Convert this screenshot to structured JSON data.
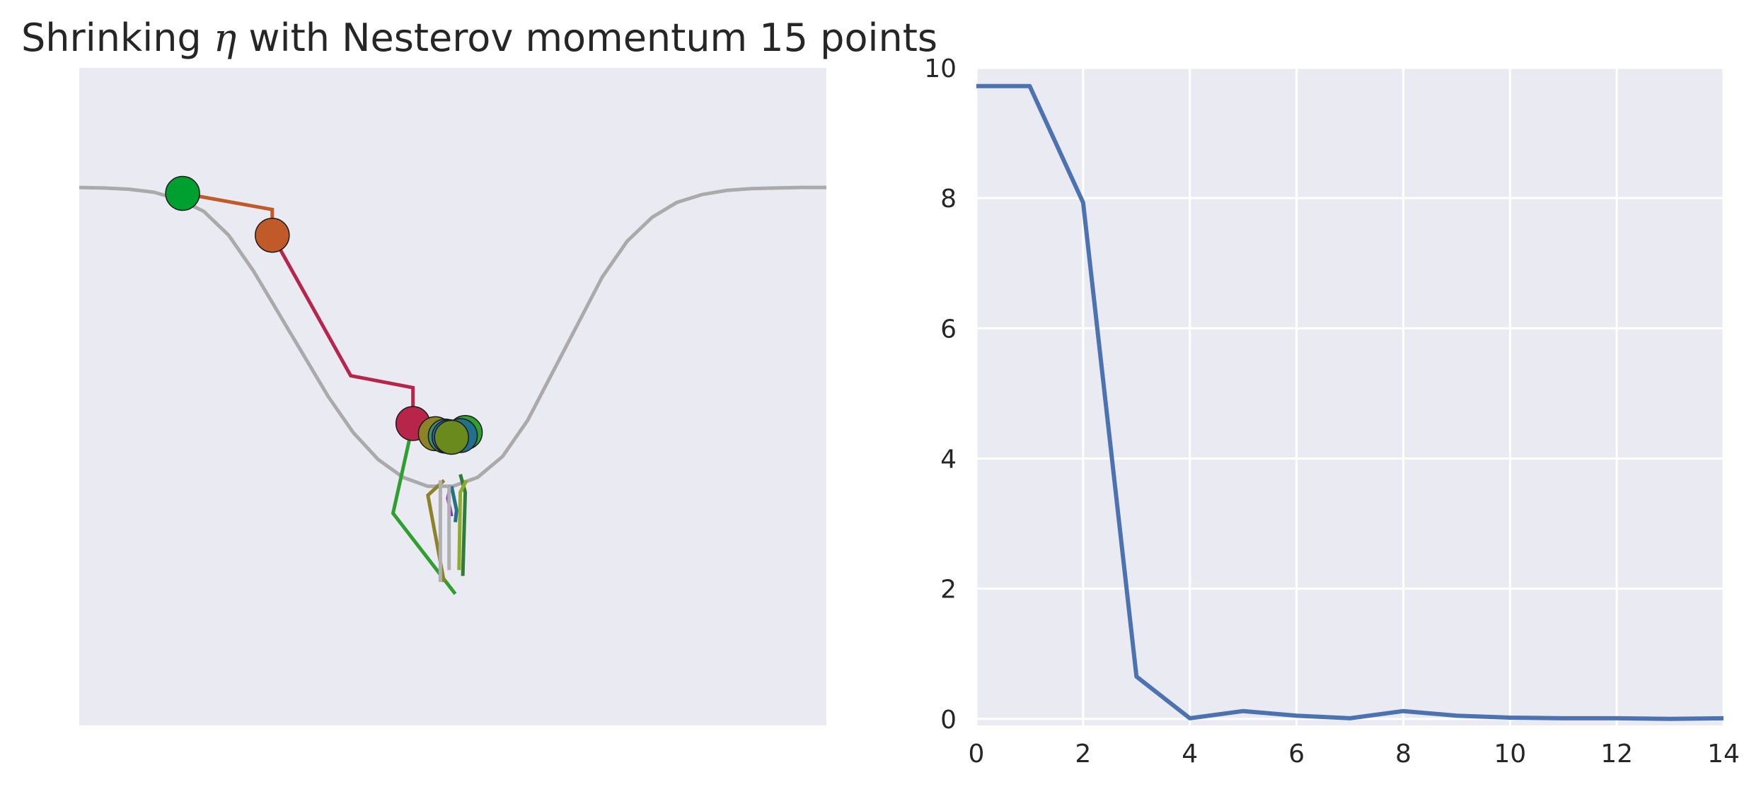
{
  "chart_data": [
    {
      "type": "line",
      "title_prefix": "Shrinking ",
      "title_symbol": "η",
      "title_suffix": " with Nesterov momentum 15 points",
      "xlabel": "",
      "ylabel": "",
      "axes_visible": false,
      "grid": false,
      "curve": {
        "x": [
          -3.0,
          -2.8,
          -2.6,
          -2.4,
          -2.2,
          -2.0,
          -1.8,
          -1.6,
          -1.4,
          -1.2,
          -1.0,
          -0.8,
          -0.6,
          -0.4,
          -0.2,
          0.0,
          0.2,
          0.4,
          0.6,
          0.8,
          1.0,
          1.2,
          1.4,
          1.6,
          1.8,
          2.0,
          2.2,
          2.4,
          2.6,
          2.8,
          3.0
        ],
        "y": [
          0.8,
          0.799,
          0.797,
          0.792,
          0.78,
          0.76,
          0.72,
          0.66,
          0.59,
          0.52,
          0.45,
          0.39,
          0.345,
          0.315,
          0.3,
          0.3,
          0.315,
          0.35,
          0.41,
          0.49,
          0.57,
          0.65,
          0.71,
          0.75,
          0.775,
          0.788,
          0.795,
          0.798,
          0.799,
          0.8,
          0.8
        ],
        "color": "#aaaaaa"
      },
      "segments": [
        {
          "x": [
            -2.17,
            -1.45,
            -1.45
          ],
          "y": [
            0.79,
            0.763,
            0.72
          ],
          "color": "#c05a28"
        },
        {
          "x": [
            -1.45,
            -0.82,
            -0.32,
            -0.32
          ],
          "y": [
            0.72,
            0.485,
            0.465,
            0.405
          ],
          "color": "#b8254a"
        },
        {
          "x": [
            -0.32,
            -0.48,
            0.02
          ],
          "y": [
            0.405,
            0.255,
            0.12
          ],
          "color": "#2fa02f"
        },
        {
          "x": [
            -0.07,
            -0.2,
            -0.07
          ],
          "y": [
            0.31,
            0.285,
            0.14
          ],
          "color": "#8c8328"
        },
        {
          "x": [
            0.06,
            0.1,
            0.08
          ],
          "y": [
            0.32,
            0.29,
            0.15
          ],
          "color": "#2f7d3a"
        },
        {
          "x": [
            0.11,
            0.06,
            0.05
          ],
          "y": [
            0.31,
            0.29,
            0.16
          ],
          "color": "#8cac2a"
        },
        {
          "x": [
            -0.02,
            -0.04,
            -0.01
          ],
          "y": [
            0.3,
            0.28,
            0.25
          ],
          "color": "#8b2fc9"
        },
        {
          "x": [
            -0.01,
            0.03,
            0.02
          ],
          "y": [
            0.3,
            0.26,
            0.24
          ],
          "color": "#23708c"
        },
        {
          "x": [
            -0.1,
            -0.1,
            -0.1
          ],
          "y": [
            0.31,
            0.14,
            0.14
          ],
          "color": "#b0b0b0"
        },
        {
          "x": [
            -0.03,
            -0.03,
            -0.03
          ],
          "y": [
            0.3,
            0.16,
            0.16
          ],
          "color": "#b0b0b0"
        }
      ],
      "points": [
        {
          "x": -2.17,
          "y": 0.79,
          "color": "#00a030"
        },
        {
          "x": -1.45,
          "y": 0.72,
          "color": "#c05a28"
        },
        {
          "x": -0.32,
          "y": 0.405,
          "color": "#b8254a"
        },
        {
          "x": 0.1,
          "y": 0.39,
          "color": "#2fa02f"
        },
        {
          "x": 0.06,
          "y": 0.385,
          "color": "#23708c"
        },
        {
          "x": -0.14,
          "y": 0.388,
          "color": "#8c8328"
        },
        {
          "x": -0.06,
          "y": 0.384,
          "color": "#3a8f6a"
        },
        {
          "x": -0.03,
          "y": 0.383,
          "color": "#2f5fbf"
        },
        {
          "x": -0.01,
          "y": 0.382,
          "color": "#6b8a1e"
        }
      ],
      "xlim": [
        -3.0,
        3.0
      ],
      "ylim": [
        -0.1,
        1.0
      ]
    },
    {
      "type": "line",
      "title": "",
      "xlabel": "",
      "ylabel": "",
      "grid": true,
      "x": [
        0,
        1,
        2,
        3,
        4,
        5,
        6,
        7,
        8,
        9,
        10,
        11,
        12,
        13,
        14
      ],
      "series": [
        {
          "values": [
            9.72,
            9.72,
            7.93,
            0.65,
            0.01,
            0.12,
            0.05,
            0.01,
            0.12,
            0.05,
            0.02,
            0.01,
            0.01,
            0.0,
            0.01
          ],
          "color": "#4c72b0"
        }
      ],
      "xlim": [
        0,
        14
      ],
      "ylim": [
        -0.1,
        10.0
      ],
      "xticks": [
        "0",
        "2",
        "4",
        "6",
        "8",
        "10",
        "12",
        "14"
      ],
      "yticks": [
        "0",
        "2",
        "4",
        "6",
        "8",
        "10"
      ],
      "xtick_values": [
        0,
        2,
        4,
        6,
        8,
        10,
        12,
        14
      ],
      "ytick_values": [
        0,
        2,
        4,
        6,
        8,
        10
      ]
    }
  ]
}
